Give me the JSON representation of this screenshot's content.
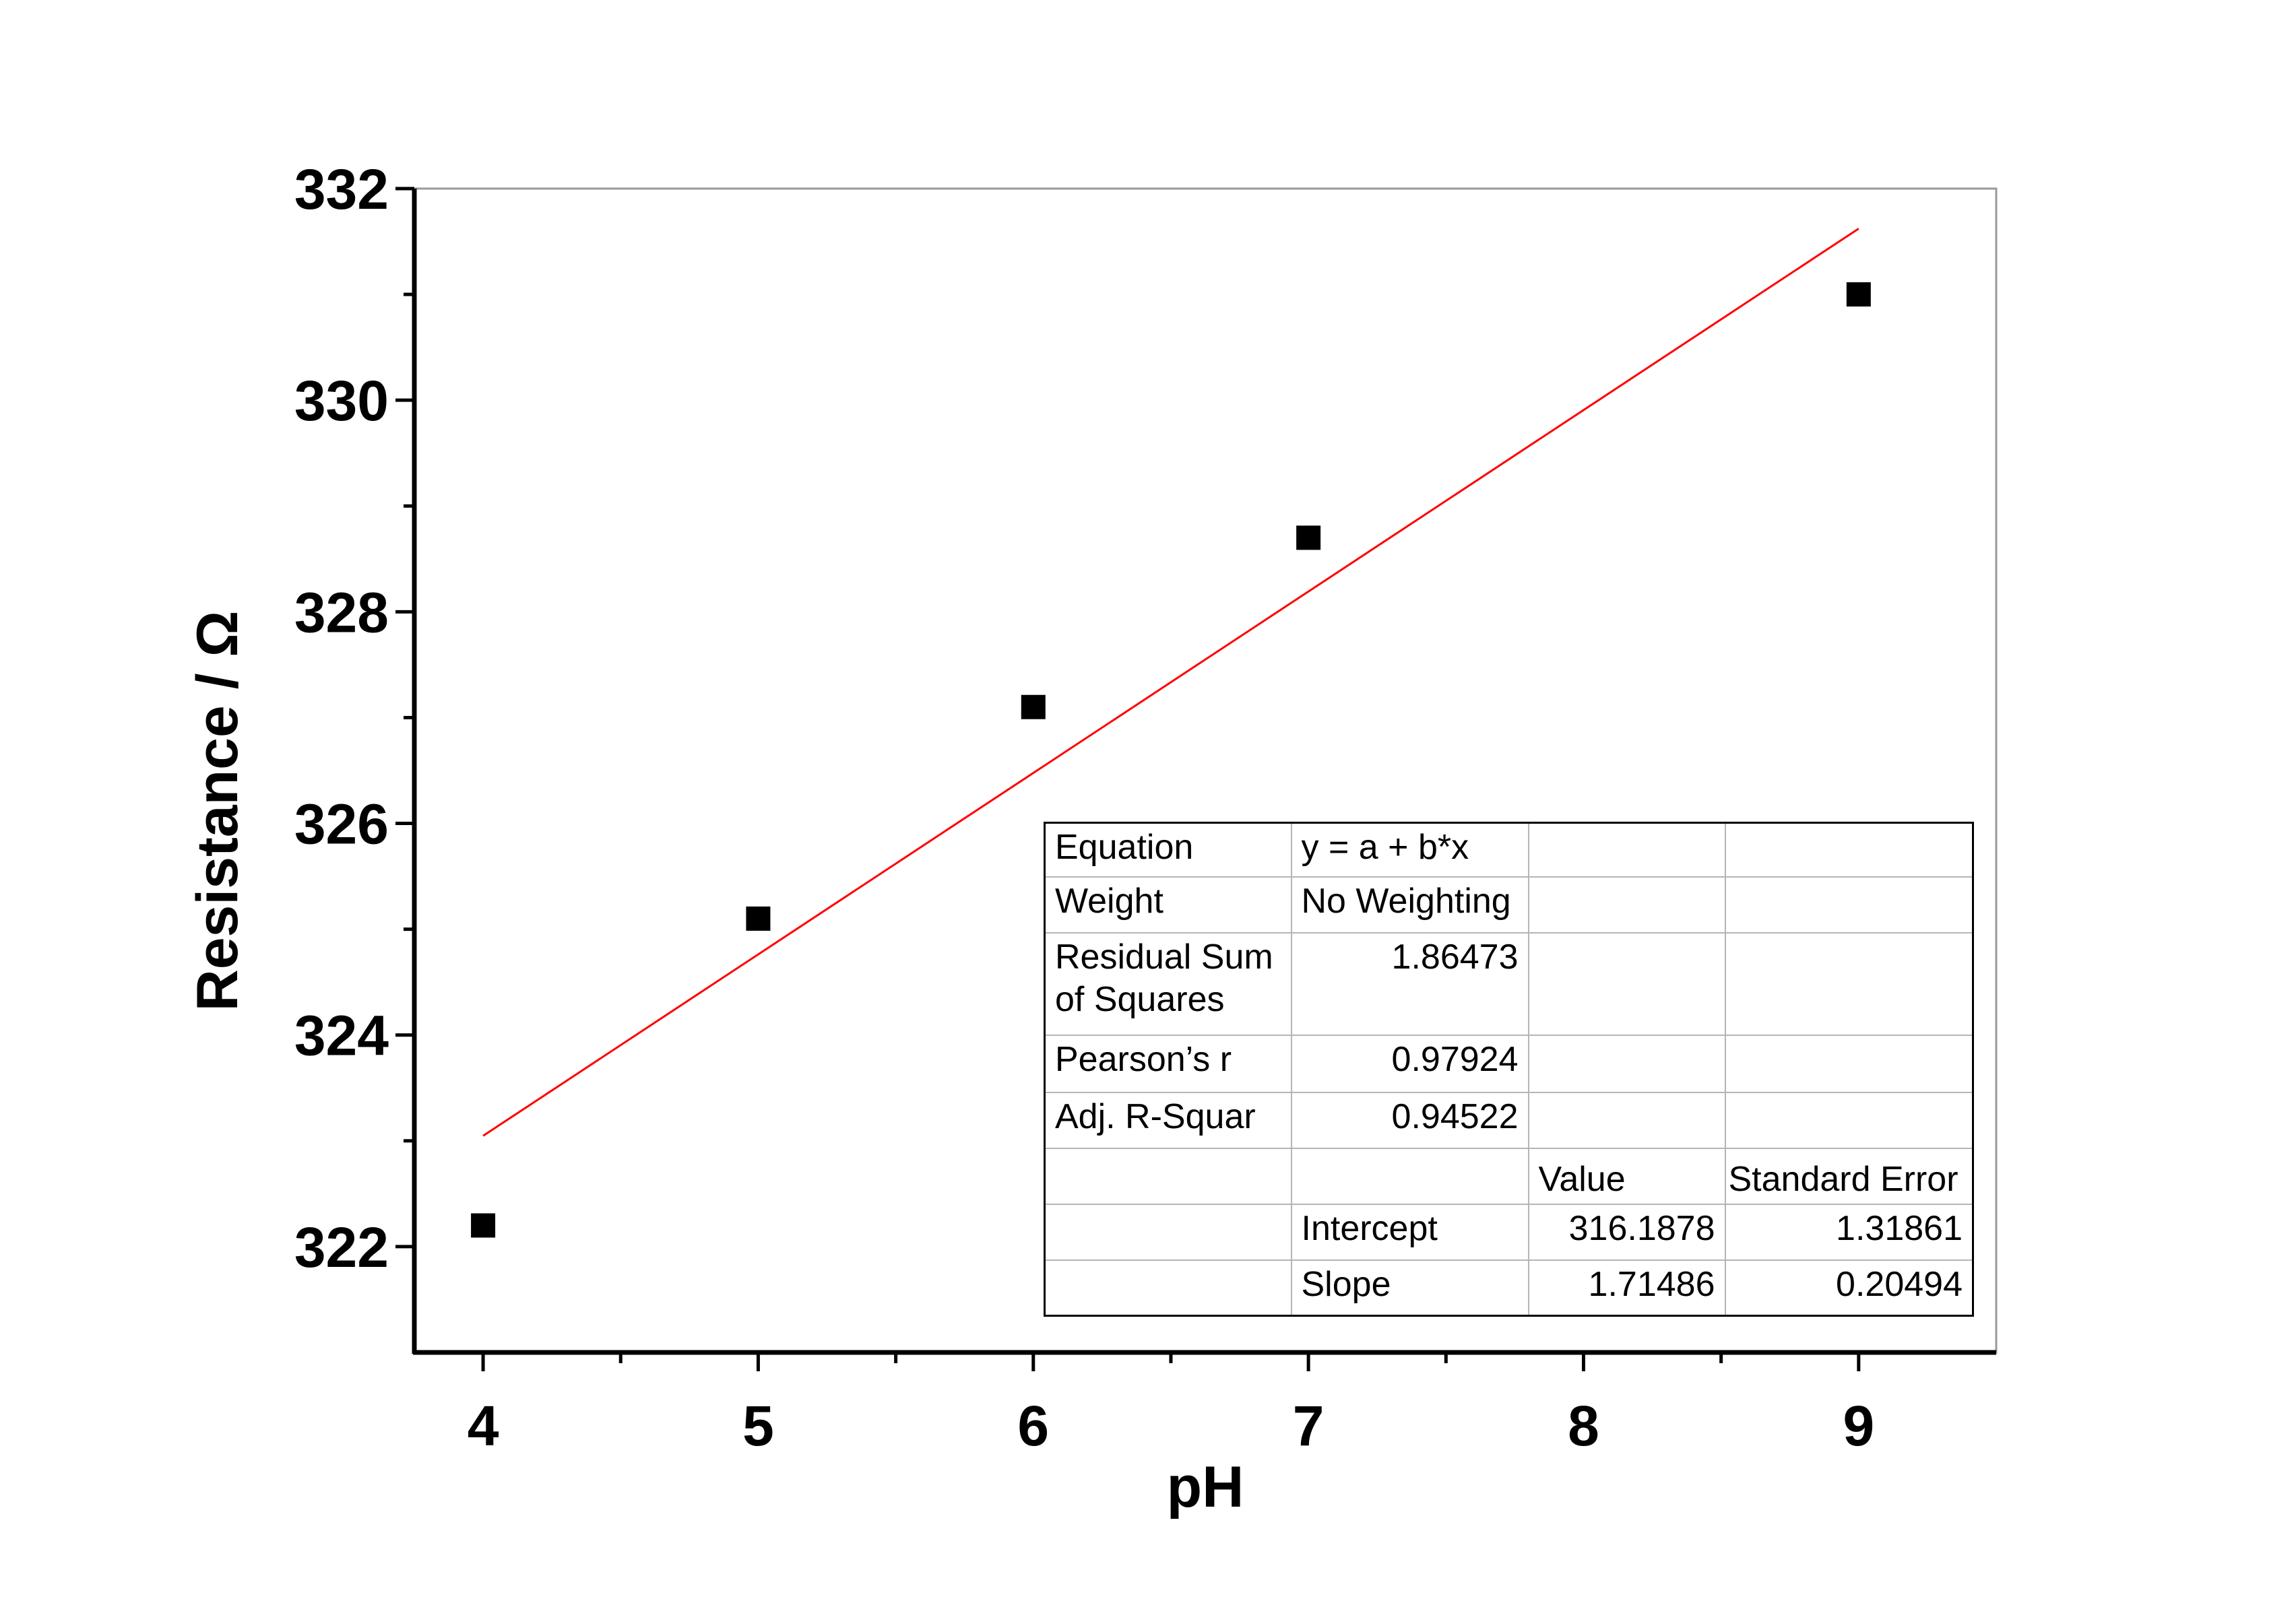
{
  "chart_data": {
    "type": "scatter",
    "xlabel": "pH",
    "ylabel": "Resistance / Ω",
    "xlim": [
      3.75,
      9.5
    ],
    "ylim": [
      321,
      332
    ],
    "x_ticks": [
      "4",
      "5",
      "6",
      "7",
      "8",
      "9"
    ],
    "y_ticks": [
      "322",
      "324",
      "326",
      "328",
      "330",
      "332"
    ],
    "grid": false,
    "series": [
      {
        "marker": "square",
        "color": "#000000",
        "points": [
          {
            "x": 4,
            "y": 322.2
          },
          {
            "x": 5,
            "y": 325.1
          },
          {
            "x": 6,
            "y": 327.1
          },
          {
            "x": 7,
            "y": 328.7
          },
          {
            "x": 9,
            "y": 331.0
          }
        ]
      }
    ],
    "fit_line": {
      "color": "#ff0000",
      "intercept": 316.1878,
      "slope": 1.71486,
      "x_range": [
        4,
        9
      ]
    },
    "fit_table": {
      "rows": [
        {
          "label": "Equation",
          "value": "y = a + b*x"
        },
        {
          "label": "Weight",
          "value": "No Weighting"
        },
        {
          "label": "Residual Sum of Squares",
          "value": "1.86473"
        },
        {
          "label": "Pearson’s r",
          "value": "0.97924"
        },
        {
          "label": "Adj. R-Squar",
          "value": "0.94522"
        }
      ],
      "header": {
        "value": "Value",
        "std_error": "Standard Error"
      },
      "params": [
        {
          "name": "Intercept",
          "value": "316.1878",
          "std_error": "1.31861"
        },
        {
          "name": "Slope",
          "value": "1.71486",
          "std_error": "0.20494"
        }
      ]
    }
  }
}
